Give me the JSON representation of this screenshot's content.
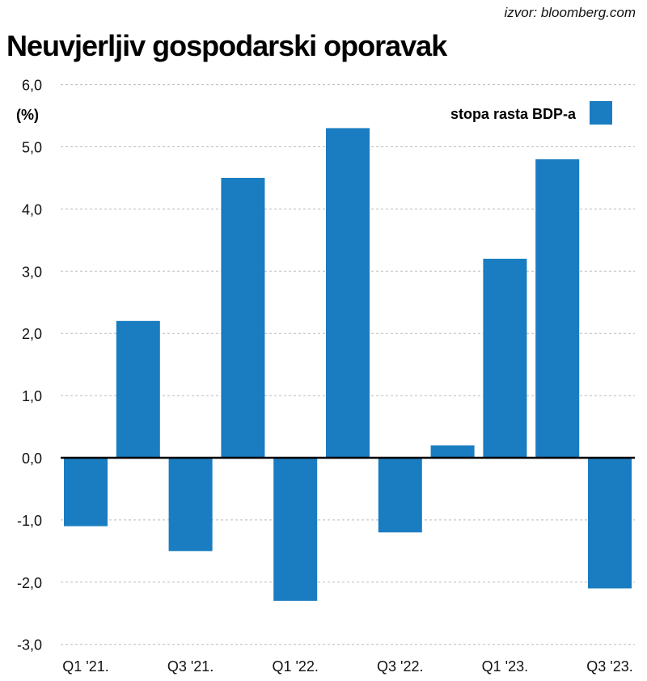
{
  "source": "izvor: bloomberg.com",
  "chart_data": {
    "type": "bar",
    "title": "Neuvjerljiv gospodarski oporavak",
    "ylabel": "(%)",
    "xlabel": "",
    "ylim": [
      -3,
      6
    ],
    "yticks": [
      6,
      5,
      4,
      3,
      2,
      1,
      0,
      -1,
      -2,
      -3
    ],
    "ytick_labels": [
      "6,0",
      "5,0",
      "4,0",
      "3,0",
      "2,0",
      "1,0",
      "0,0",
      "-1,0",
      "-2,0",
      "-3,0"
    ],
    "categories": [
      "Q1 '21.",
      "",
      "Q3 '21.",
      "",
      "Q1 '22.",
      "",
      "Q3 '22.",
      "",
      "Q1 '23.",
      "",
      "Q3 '23."
    ],
    "series": [
      {
        "name": "stopa rasta BDP-a",
        "color": "#1a7cc1",
        "values": [
          -1.1,
          2.2,
          -1.5,
          4.5,
          -2.3,
          5.3,
          -1.2,
          0.2,
          3.2,
          4.8,
          -2.1
        ]
      }
    ],
    "grid": true,
    "legend": "top-right"
  }
}
